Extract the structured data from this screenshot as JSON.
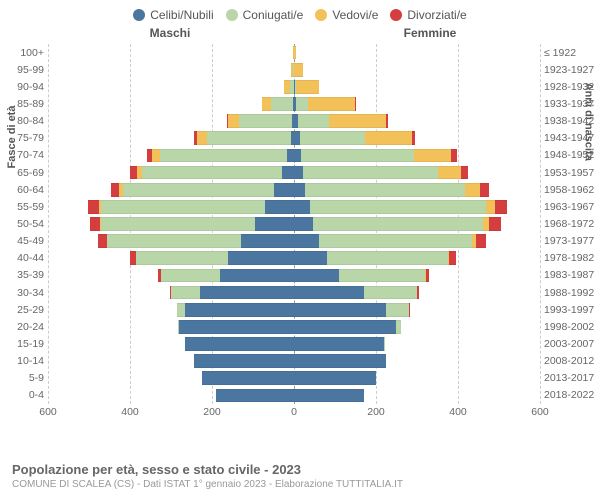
{
  "legend": {
    "items": [
      {
        "label": "Celibi/Nubili",
        "color": "#4a76a0"
      },
      {
        "label": "Coniugati/e",
        "color": "#b8d6a8"
      },
      {
        "label": "Vedovi/e",
        "color": "#f2c159"
      },
      {
        "label": "Divorziati/e",
        "color": "#d53e3e"
      }
    ]
  },
  "gender": {
    "male": "Maschi",
    "female": "Femmine"
  },
  "axis": {
    "left_title": "Fasce di età",
    "right_title": "Anni di nascita",
    "x_ticks": [
      -600,
      -400,
      -200,
      0,
      200,
      400,
      600
    ],
    "x_max": 600
  },
  "colors": {
    "single": "#4a76a0",
    "married": "#b8d6a8",
    "widowed": "#f2c159",
    "divorced": "#d53e3e",
    "grid": "#cccccc"
  },
  "age_groups": [
    {
      "age": "100+",
      "birth": "≤ 1922",
      "m": {
        "s": 0,
        "c": 0,
        "w": 3,
        "d": 0
      },
      "f": {
        "s": 0,
        "c": 0,
        "w": 4,
        "d": 0
      }
    },
    {
      "age": "95-99",
      "birth": "1923-1927",
      "m": {
        "s": 0,
        "c": 2,
        "w": 6,
        "d": 0
      },
      "f": {
        "s": 0,
        "c": 0,
        "w": 22,
        "d": 0
      }
    },
    {
      "age": "90-94",
      "birth": "1928-1932",
      "m": {
        "s": 0,
        "c": 10,
        "w": 14,
        "d": 0
      },
      "f": {
        "s": 2,
        "c": 3,
        "w": 55,
        "d": 0
      }
    },
    {
      "age": "85-89",
      "birth": "1933-1937",
      "m": {
        "s": 2,
        "c": 55,
        "w": 20,
        "d": 2
      },
      "f": {
        "s": 6,
        "c": 28,
        "w": 115,
        "d": 2
      }
    },
    {
      "age": "80-84",
      "birth": "1938-1942",
      "m": {
        "s": 4,
        "c": 130,
        "w": 26,
        "d": 4
      },
      "f": {
        "s": 10,
        "c": 75,
        "w": 140,
        "d": 4
      }
    },
    {
      "age": "75-79",
      "birth": "1943-1947",
      "m": {
        "s": 8,
        "c": 205,
        "w": 24,
        "d": 6
      },
      "f": {
        "s": 14,
        "c": 160,
        "w": 115,
        "d": 6
      }
    },
    {
      "age": "70-74",
      "birth": "1948-1952",
      "m": {
        "s": 16,
        "c": 310,
        "w": 20,
        "d": 12
      },
      "f": {
        "s": 18,
        "c": 275,
        "w": 90,
        "d": 14
      }
    },
    {
      "age": "65-69",
      "birth": "1953-1957",
      "m": {
        "s": 30,
        "c": 340,
        "w": 12,
        "d": 18
      },
      "f": {
        "s": 22,
        "c": 330,
        "w": 55,
        "d": 18
      }
    },
    {
      "age": "60-64",
      "birth": "1958-1962",
      "m": {
        "s": 48,
        "c": 370,
        "w": 8,
        "d": 20
      },
      "f": {
        "s": 28,
        "c": 390,
        "w": 35,
        "d": 22
      }
    },
    {
      "age": "55-59",
      "birth": "1963-1967",
      "m": {
        "s": 70,
        "c": 400,
        "w": 6,
        "d": 26
      },
      "f": {
        "s": 38,
        "c": 430,
        "w": 22,
        "d": 30
      }
    },
    {
      "age": "50-54",
      "birth": "1968-1972",
      "m": {
        "s": 95,
        "c": 375,
        "w": 4,
        "d": 24
      },
      "f": {
        "s": 46,
        "c": 415,
        "w": 14,
        "d": 30
      }
    },
    {
      "age": "45-49",
      "birth": "1973-1977",
      "m": {
        "s": 130,
        "c": 325,
        "w": 2,
        "d": 22
      },
      "f": {
        "s": 60,
        "c": 375,
        "w": 8,
        "d": 26
      }
    },
    {
      "age": "40-44",
      "birth": "1978-1982",
      "m": {
        "s": 160,
        "c": 225,
        "w": 0,
        "d": 14
      },
      "f": {
        "s": 80,
        "c": 295,
        "w": 4,
        "d": 16
      }
    },
    {
      "age": "35-39",
      "birth": "1983-1987",
      "m": {
        "s": 180,
        "c": 145,
        "w": 0,
        "d": 6
      },
      "f": {
        "s": 110,
        "c": 210,
        "w": 2,
        "d": 8
      }
    },
    {
      "age": "30-34",
      "birth": "1988-1992",
      "m": {
        "s": 230,
        "c": 70,
        "w": 0,
        "d": 2
      },
      "f": {
        "s": 170,
        "c": 130,
        "w": 0,
        "d": 4
      }
    },
    {
      "age": "25-29",
      "birth": "1993-1997",
      "m": {
        "s": 265,
        "c": 20,
        "w": 0,
        "d": 0
      },
      "f": {
        "s": 225,
        "c": 55,
        "w": 0,
        "d": 2
      }
    },
    {
      "age": "20-24",
      "birth": "1998-2002",
      "m": {
        "s": 280,
        "c": 4,
        "w": 0,
        "d": 0
      },
      "f": {
        "s": 248,
        "c": 14,
        "w": 0,
        "d": 0
      }
    },
    {
      "age": "15-19",
      "birth": "2003-2007",
      "m": {
        "s": 265,
        "c": 0,
        "w": 0,
        "d": 0
      },
      "f": {
        "s": 220,
        "c": 2,
        "w": 0,
        "d": 0
      }
    },
    {
      "age": "10-14",
      "birth": "2008-2012",
      "m": {
        "s": 245,
        "c": 0,
        "w": 0,
        "d": 0
      },
      "f": {
        "s": 225,
        "c": 0,
        "w": 0,
        "d": 0
      }
    },
    {
      "age": "5-9",
      "birth": "2013-2017",
      "m": {
        "s": 225,
        "c": 0,
        "w": 0,
        "d": 0
      },
      "f": {
        "s": 200,
        "c": 0,
        "w": 0,
        "d": 0
      }
    },
    {
      "age": "0-4",
      "birth": "2018-2022",
      "m": {
        "s": 190,
        "c": 0,
        "w": 0,
        "d": 0
      },
      "f": {
        "s": 170,
        "c": 0,
        "w": 0,
        "d": 0
      }
    }
  ],
  "footer": {
    "title": "Popolazione per età, sesso e stato civile - 2023",
    "subtitle": "COMUNE DI SCALEA (CS) - Dati ISTAT 1° gennaio 2023 - Elaborazione TUTTITALIA.IT"
  }
}
